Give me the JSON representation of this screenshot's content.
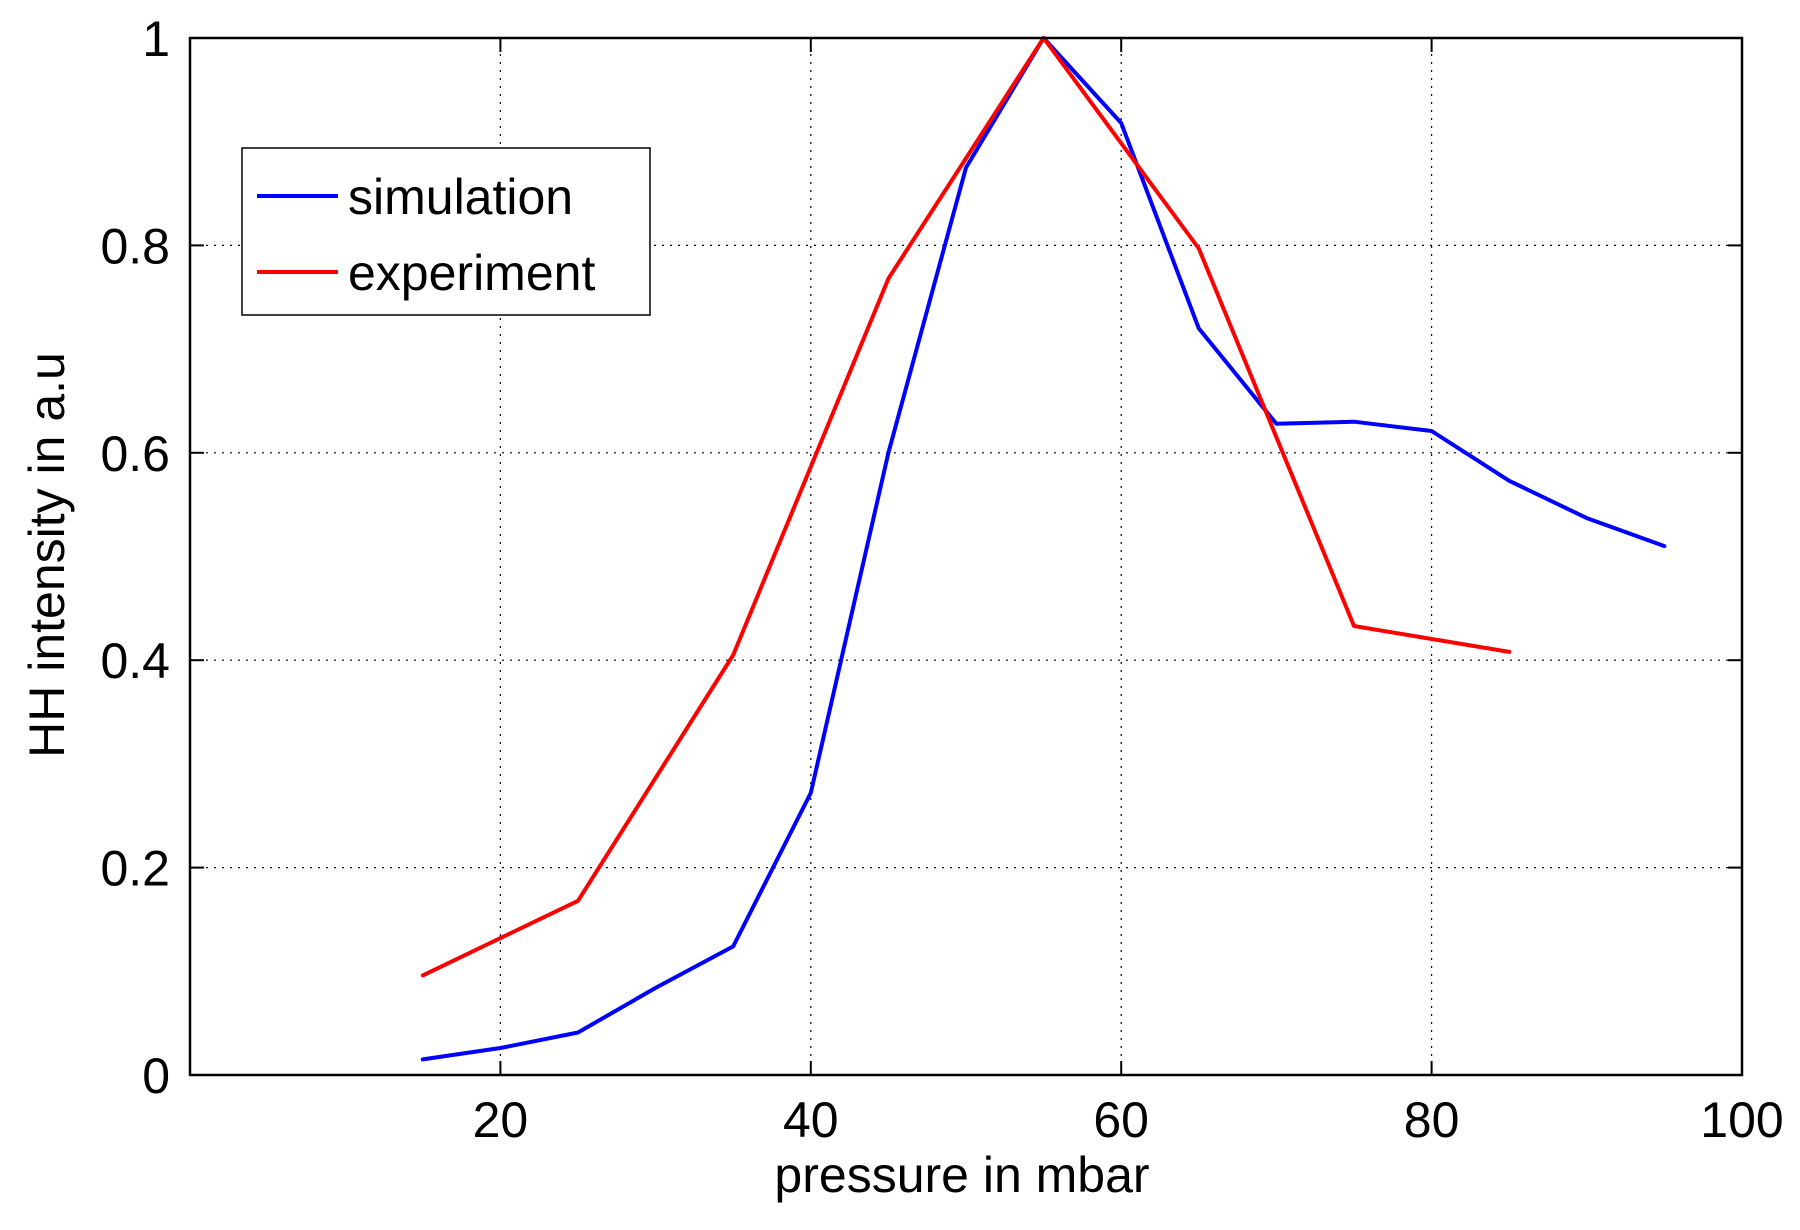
{
  "chart_data": {
    "type": "line",
    "title": "",
    "xlabel": "pressure in mbar",
    "ylabel": "HH intensity in a.u",
    "xlim": [
      0,
      100
    ],
    "ylim": [
      0,
      1
    ],
    "x_ticks": [
      20,
      40,
      60,
      80,
      100
    ],
    "x_tick_labels": [
      "20",
      "40",
      "60",
      "80",
      "100"
    ],
    "y_ticks": [
      0,
      0.2,
      0.4,
      0.6,
      0.8,
      1
    ],
    "y_tick_labels": [
      "0",
      "0.2",
      "0.4",
      "0.6",
      "0.8",
      "1"
    ],
    "grid": true,
    "legend_position": "top-left",
    "series": [
      {
        "name": "simulation",
        "color": "#0000ff",
        "x": [
          15,
          20,
          25,
          30,
          35,
          40,
          45,
          50,
          55,
          60,
          65,
          70,
          75,
          80,
          85,
          90,
          95
        ],
        "values": [
          0.015,
          0.026,
          0.041,
          0.084,
          0.124,
          0.272,
          0.6,
          0.875,
          1.0,
          0.918,
          0.72,
          0.628,
          0.63,
          0.621,
          0.573,
          0.537,
          0.51
        ]
      },
      {
        "name": "experiment",
        "color": "#ff0000",
        "x": [
          15,
          25,
          35,
          45,
          55,
          65,
          75,
          85
        ],
        "values": [
          0.096,
          0.168,
          0.405,
          0.768,
          1.0,
          0.797,
          0.433,
          0.408
        ]
      }
    ]
  }
}
